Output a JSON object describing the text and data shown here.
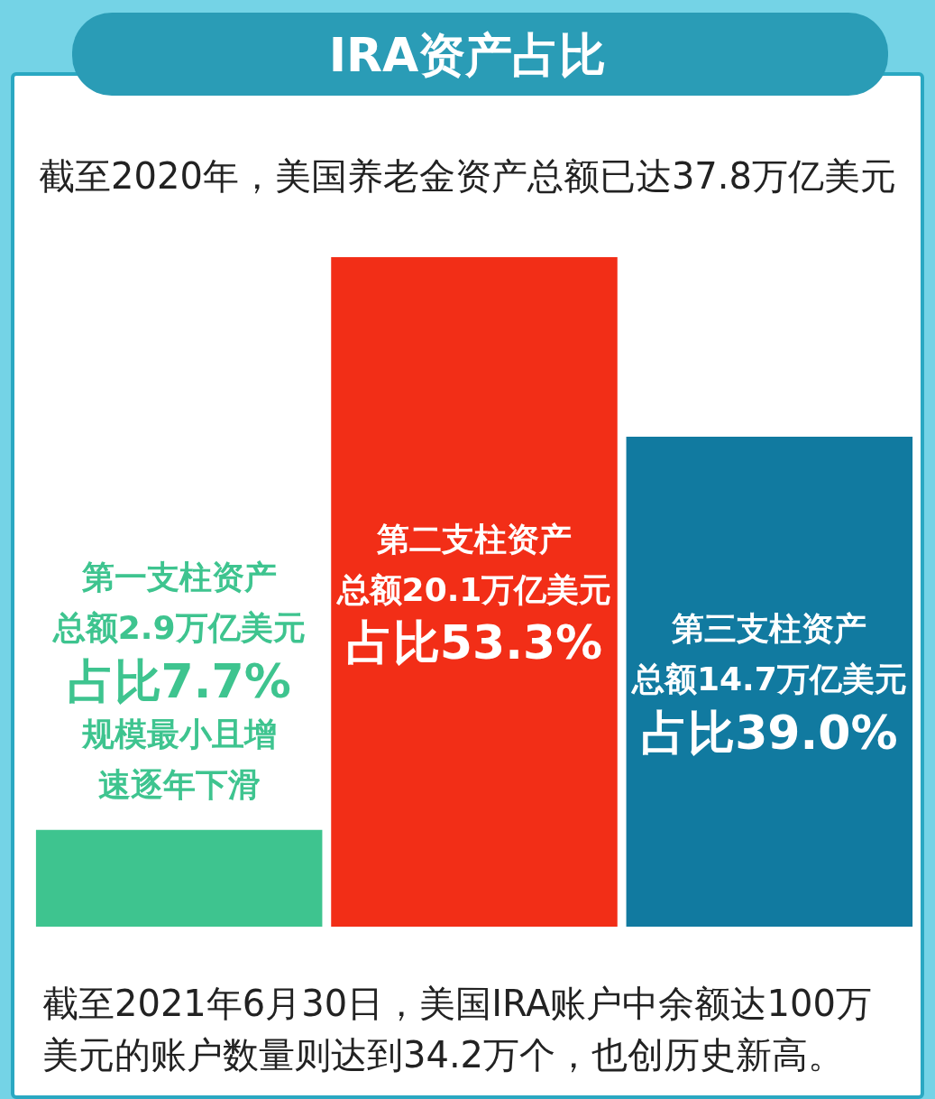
{
  "chart_data": {
    "type": "bar",
    "title": "IRA资产占比",
    "subtitle": "截至2020年，美国养老金资产总额已达37.8万亿美元",
    "categories": [
      "第一支柱资产",
      "第二支柱资产",
      "第三支柱资产"
    ],
    "values": [
      7.7,
      53.3,
      39.0
    ],
    "colors": [
      "#3ec48f",
      "#f22e17",
      "#117aa0"
    ],
    "value_labels": [
      "占比7.7%",
      "占比53.3%",
      "占比39.0%"
    ],
    "tick_labels": false,
    "annotations": [
      "总额2.9万亿美元",
      "规模最小且增速逐年下滑",
      "总额20.1万亿美元",
      "总额14.7万亿美元",
      "截至2021年6月30日，美国IRA账户中余额达100万美元的账户数量则达到34.2万个，也创历史新高。"
    ]
  }
}
